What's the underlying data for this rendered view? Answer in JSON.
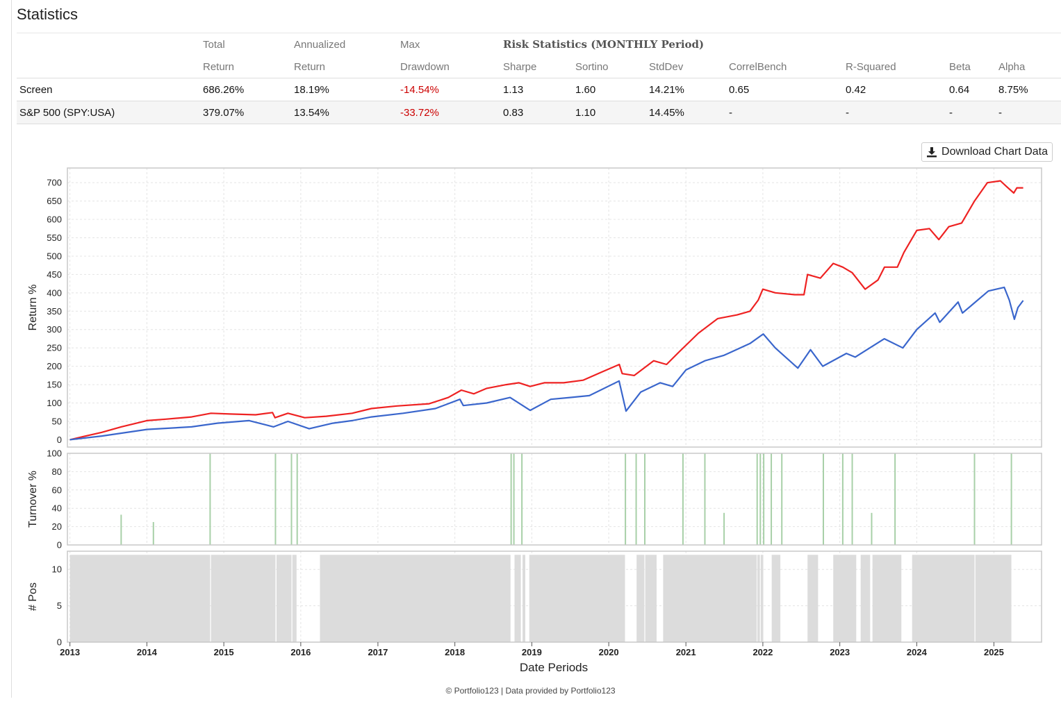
{
  "page": {
    "title": "Statistics"
  },
  "table": {
    "header1": [
      "",
      "Total",
      "Annualized",
      "Max",
      "Risk Statistics (MONTHLY Period)",
      "",
      "",
      "",
      "",
      "",
      ""
    ],
    "header2": [
      "",
      "Return",
      "Return",
      "Drawdown",
      "Sharpe",
      "Sortino",
      "StdDev",
      "CorrelBench",
      "R-Squared",
      "Beta",
      "Alpha"
    ],
    "rows": [
      [
        "Screen",
        "686.26%",
        "18.19%",
        "-14.54%",
        "1.13",
        "1.60",
        "14.21%",
        "0.65",
        "0.42",
        "0.64",
        "8.75%"
      ],
      [
        "S&P 500 (SPY:USA)",
        "379.07%",
        "13.54%",
        "-33.72%",
        "0.83",
        "1.10",
        "14.45%",
        "-",
        "-",
        "-",
        "-"
      ]
    ]
  },
  "download_button": {
    "label": "Download Chart Data",
    "icon": "download-icon"
  },
  "footer": "© Portfolio123 | Data provided by Portfolio123",
  "colors": {
    "screen": "#ee2222",
    "benchmark": "#3a66cc",
    "turnover": "#a8d0a8",
    "positions": "#dcdcdc",
    "negative": "#cc0000"
  },
  "chart_data": [
    {
      "type": "line",
      "ylabel": "Return %",
      "xlabel": "Date Periods",
      "ylim": [
        -20,
        740
      ],
      "yticks": [
        0,
        50,
        100,
        150,
        200,
        250,
        300,
        350,
        400,
        450,
        500,
        550,
        600,
        650,
        700
      ],
      "xlim": [
        "2012-12-20",
        "2025-08-15"
      ],
      "xticks": [
        "2013",
        "2014",
        "2015",
        "2016",
        "2017",
        "2018",
        "2019",
        "2020",
        "2021",
        "2022",
        "2023",
        "2024",
        "2025"
      ],
      "grid": true,
      "series": [
        {
          "color": "#ee2222",
          "points": [
            [
              "2013-01-01",
              0
            ],
            [
              "2013-03-01",
              8
            ],
            [
              "2013-06-01",
              20
            ],
            [
              "2013-09-01",
              35
            ],
            [
              "2014-01-01",
              52
            ],
            [
              "2014-04-01",
              56
            ],
            [
              "2014-08-01",
              62
            ],
            [
              "2014-11-01",
              72
            ],
            [
              "2015-02-01",
              70
            ],
            [
              "2015-06-01",
              68
            ],
            [
              "2015-08-20",
              74
            ],
            [
              "2015-09-01",
              60
            ],
            [
              "2015-11-01",
              72
            ],
            [
              "2016-01-20",
              60
            ],
            [
              "2016-05-01",
              64
            ],
            [
              "2016-09-01",
              72
            ],
            [
              "2016-12-01",
              85
            ],
            [
              "2017-04-01",
              92
            ],
            [
              "2017-09-01",
              98
            ],
            [
              "2017-12-01",
              115
            ],
            [
              "2018-02-01",
              135
            ],
            [
              "2018-04-01",
              125
            ],
            [
              "2018-06-01",
              140
            ],
            [
              "2018-09-01",
              150
            ],
            [
              "2018-11-01",
              155
            ],
            [
              "2018-12-24",
              145
            ],
            [
              "2019-03-01",
              155
            ],
            [
              "2019-06-01",
              155
            ],
            [
              "2019-09-01",
              162
            ],
            [
              "2019-12-01",
              185
            ],
            [
              "2020-02-20",
              205
            ],
            [
              "2020-03-05",
              180
            ],
            [
              "2020-05-01",
              175
            ],
            [
              "2020-08-01",
              215
            ],
            [
              "2020-10-01",
              205
            ],
            [
              "2020-12-01",
              240
            ],
            [
              "2021-03-01",
              290
            ],
            [
              "2021-06-01",
              330
            ],
            [
              "2021-09-01",
              340
            ],
            [
              "2021-11-01",
              350
            ],
            [
              "2021-12-10",
              380
            ],
            [
              "2022-01-01",
              410
            ],
            [
              "2022-03-01",
              400
            ],
            [
              "2022-06-01",
              395
            ],
            [
              "2022-07-15",
              395
            ],
            [
              "2022-08-01",
              450
            ],
            [
              "2022-10-01",
              440
            ],
            [
              "2022-12-01",
              480
            ],
            [
              "2023-01-15",
              470
            ],
            [
              "2023-03-01",
              455
            ],
            [
              "2023-05-01",
              410
            ],
            [
              "2023-07-01",
              435
            ],
            [
              "2023-08-01",
              470
            ],
            [
              "2023-10-01",
              470
            ],
            [
              "2023-11-01",
              510
            ],
            [
              "2024-01-01",
              570
            ],
            [
              "2024-03-01",
              575
            ],
            [
              "2024-04-15",
              545
            ],
            [
              "2024-06-01",
              580
            ],
            [
              "2024-08-01",
              590
            ],
            [
              "2024-10-01",
              650
            ],
            [
              "2024-12-01",
              700
            ],
            [
              "2025-02-01",
              705
            ],
            [
              "2025-03-01",
              690
            ],
            [
              "2025-04-05",
              672
            ],
            [
              "2025-04-20",
              686
            ],
            [
              "2025-05-20",
              686
            ]
          ]
        },
        {
          "color": "#3a66cc",
          "points": [
            [
              "2013-01-01",
              0
            ],
            [
              "2013-06-01",
              10
            ],
            [
              "2014-01-01",
              28
            ],
            [
              "2014-08-01",
              35
            ],
            [
              "2014-12-01",
              45
            ],
            [
              "2015-05-01",
              52
            ],
            [
              "2015-08-25",
              35
            ],
            [
              "2015-11-01",
              50
            ],
            [
              "2016-02-10",
              30
            ],
            [
              "2016-06-01",
              45
            ],
            [
              "2016-09-01",
              52
            ],
            [
              "2016-12-01",
              62
            ],
            [
              "2017-05-01",
              72
            ],
            [
              "2017-10-01",
              85
            ],
            [
              "2018-01-25",
              110
            ],
            [
              "2018-02-10",
              93
            ],
            [
              "2018-06-01",
              100
            ],
            [
              "2018-09-20",
              115
            ],
            [
              "2018-12-24",
              80
            ],
            [
              "2019-04-01",
              110
            ],
            [
              "2019-07-01",
              115
            ],
            [
              "2019-10-01",
              120
            ],
            [
              "2020-02-19",
              160
            ],
            [
              "2020-03-23",
              78
            ],
            [
              "2020-06-01",
              130
            ],
            [
              "2020-09-01",
              155
            ],
            [
              "2020-10-30",
              145
            ],
            [
              "2021-01-01",
              190
            ],
            [
              "2021-04-01",
              215
            ],
            [
              "2021-07-01",
              230
            ],
            [
              "2021-11-01",
              262
            ],
            [
              "2022-01-03",
              288
            ],
            [
              "2022-03-01",
              250
            ],
            [
              "2022-06-16",
              195
            ],
            [
              "2022-08-15",
              245
            ],
            [
              "2022-10-12",
              200
            ],
            [
              "2023-02-01",
              235
            ],
            [
              "2023-03-15",
              225
            ],
            [
              "2023-07-31",
              275
            ],
            [
              "2023-10-27",
              250
            ],
            [
              "2024-01-01",
              300
            ],
            [
              "2024-03-28",
              345
            ],
            [
              "2024-04-19",
              320
            ],
            [
              "2024-07-15",
              375
            ],
            [
              "2024-08-05",
              345
            ],
            [
              "2024-12-06",
              405
            ],
            [
              "2025-02-19",
              415
            ],
            [
              "2025-03-15",
              380
            ],
            [
              "2025-04-08",
              328
            ],
            [
              "2025-04-25",
              360
            ],
            [
              "2025-05-20",
              379
            ]
          ]
        }
      ]
    },
    {
      "type": "bar",
      "ylabel": "Turnover %",
      "ylim": [
        0,
        100
      ],
      "yticks": [
        0,
        20,
        40,
        60,
        80,
        100
      ],
      "series": [
        {
          "color": "#a8d0a8",
          "points": [
            [
              "2013-09-01",
              33
            ],
            [
              "2014-02-01",
              25
            ],
            [
              "2014-10-28",
              100
            ],
            [
              "2015-09-03",
              100
            ],
            [
              "2015-11-18",
              100
            ],
            [
              "2015-12-15",
              100
            ],
            [
              "2018-09-25",
              100
            ],
            [
              "2018-10-08",
              100
            ],
            [
              "2018-11-15",
              100
            ],
            [
              "2020-03-20",
              100
            ],
            [
              "2020-05-10",
              100
            ],
            [
              "2020-06-20",
              100
            ],
            [
              "2020-12-18",
              100
            ],
            [
              "2021-04-01",
              100
            ],
            [
              "2021-07-01",
              35
            ],
            [
              "2021-12-05",
              100
            ],
            [
              "2021-12-20",
              100
            ],
            [
              "2022-01-05",
              100
            ],
            [
              "2022-02-10",
              100
            ],
            [
              "2022-04-01",
              100
            ],
            [
              "2022-10-15",
              100
            ],
            [
              "2023-01-15",
              100
            ],
            [
              "2023-03-01",
              100
            ],
            [
              "2023-06-01",
              35
            ],
            [
              "2023-09-20",
              100
            ],
            [
              "2024-10-01",
              100
            ],
            [
              "2025-03-25",
              100
            ]
          ]
        }
      ]
    },
    {
      "type": "area",
      "ylabel": "# Pos",
      "ylim": [
        0,
        12.5
      ],
      "yticks": [
        0,
        5,
        10
      ],
      "series": [
        {
          "color": "#dcdcdc",
          "points": [
            [
              "2013-01-01",
              "2014-10-28",
              12
            ],
            [
              "2014-11-01",
              "2015-09-03",
              12
            ],
            [
              "2015-09-08",
              "2015-11-18",
              12
            ],
            [
              "2015-11-22",
              "2015-12-12",
              12
            ],
            [
              "2016-04-01",
              "2018-09-22",
              12
            ],
            [
              "2018-10-11",
              "2018-11-10",
              12
            ],
            [
              "2018-11-18",
              "2018-12-01",
              12
            ],
            [
              "2018-12-20",
              "2020-03-18",
              12
            ],
            [
              "2020-05-12",
              "2020-06-18",
              12
            ],
            [
              "2020-06-22",
              "2020-08-15",
              12
            ],
            [
              "2020-09-15",
              "2021-12-03",
              12
            ],
            [
              "2021-12-06",
              "2021-12-18",
              12
            ],
            [
              "2021-12-22",
              "2022-01-03",
              12
            ],
            [
              "2022-02-12",
              "2022-03-25",
              12
            ],
            [
              "2022-08-01",
              "2022-09-20",
              12
            ],
            [
              "2022-12-01",
              "2023-03-20",
              12
            ],
            [
              "2023-04-10",
              "2023-05-25",
              12
            ],
            [
              "2023-06-05",
              "2023-10-20",
              12
            ],
            [
              "2023-12-10",
              "2024-10-01",
              12
            ],
            [
              "2024-10-05",
              "2025-03-25",
              12
            ]
          ]
        }
      ]
    }
  ]
}
